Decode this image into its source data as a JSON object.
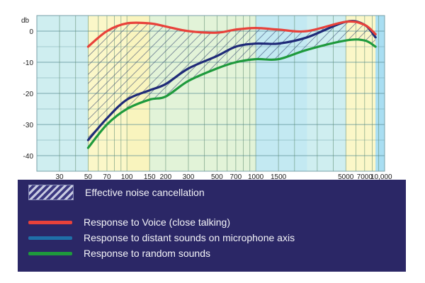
{
  "chart_data": {
    "type": "line",
    "ylabel": "db",
    "xscale": "log",
    "xlim": [
      20,
      10000
    ],
    "ylim": [
      -45,
      5
    ],
    "yticks": [
      0,
      -10,
      -20,
      -30,
      -40
    ],
    "xticks": [
      {
        "v": 30,
        "label": "30"
      },
      {
        "v": 50,
        "label": "50"
      },
      {
        "v": 70,
        "label": "70"
      },
      {
        "v": 100,
        "label": "100"
      },
      {
        "v": 150,
        "label": "150"
      },
      {
        "v": 200,
        "label": "200"
      },
      {
        "v": 300,
        "label": "300"
      },
      {
        "v": 500,
        "label": "500"
      },
      {
        "v": 700,
        "label": "700"
      },
      {
        "v": 1000,
        "label": "1000"
      },
      {
        "v": 1500,
        "label": "1500"
      },
      {
        "v": 5000,
        "label": "5000"
      },
      {
        "v": 7000,
        "label": "7000"
      },
      {
        "v": 10000,
        "label": "10,000"
      }
    ],
    "grid": true,
    "series": [
      {
        "name": "Response to Voice (close talking)",
        "color": "#e8413a",
        "x": [
          50,
          70,
          100,
          150,
          200,
          300,
          500,
          700,
          1000,
          1500,
          2500,
          5000,
          7000,
          8500
        ],
        "y": [
          -5,
          0,
          2.5,
          2.5,
          1.5,
          0,
          -0.5,
          0.5,
          1,
          0.5,
          0,
          3,
          2,
          -1
        ]
      },
      {
        "name": "Response to distant sounds on microphone axis",
        "color": "#1f2a78",
        "x": [
          50,
          70,
          100,
          150,
          200,
          300,
          500,
          700,
          1000,
          1500,
          2500,
          5000,
          7000,
          8500
        ],
        "y": [
          -35,
          -28,
          -22,
          -19,
          -17,
          -12,
          -8,
          -5,
          -4,
          -4,
          -2,
          3,
          2,
          -2
        ]
      },
      {
        "name": "Response to random sounds",
        "color": "#1e9a3c",
        "x": [
          50,
          70,
          100,
          150,
          200,
          300,
          500,
          700,
          1000,
          1500,
          2500,
          5000,
          7000,
          8500
        ],
        "y": [
          -37.5,
          -30,
          -25,
          -22,
          -21,
          -16,
          -12,
          -10,
          -9,
          -9,
          -6,
          -3,
          -3,
          -5
        ]
      }
    ],
    "legend": {
      "placement": "bottom",
      "hatch_label": "Effective noise cancellation",
      "items": [
        {
          "label": "Response to Voice (close talking)",
          "color": "#e8413a"
        },
        {
          "label": "Response to distant sounds on microphone axis",
          "color": "#1f6fa8"
        },
        {
          "label": "Response to random sounds",
          "color": "#1e9a3c"
        }
      ]
    }
  }
}
